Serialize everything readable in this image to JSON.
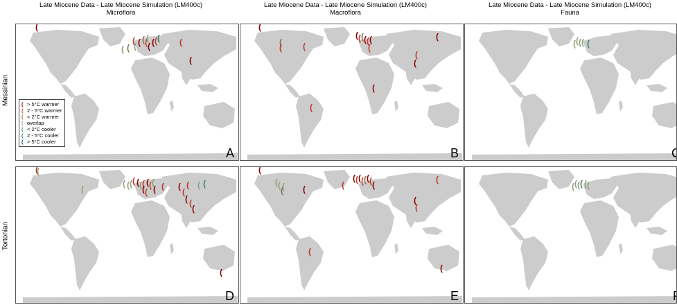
{
  "columns": [
    {
      "title": "Late Miocene Data - Late Miocene Simulation (LM400c)",
      "subtitle": "Microflora"
    },
    {
      "title": "Late Miocene Data - Late Miocene Simulation (LM400c)",
      "subtitle": "Macroflora"
    },
    {
      "title": "Late Miocene Data - Late Miocene Simulation (LM400c)",
      "subtitle": "Fauna"
    }
  ],
  "rows": [
    {
      "label": "Messinian"
    },
    {
      "label": "Tortonian"
    }
  ],
  "panels": [
    {
      "letter": "A"
    },
    {
      "letter": "B"
    },
    {
      "letter": "C"
    },
    {
      "letter": "D"
    },
    {
      "letter": "E"
    },
    {
      "letter": "F"
    }
  ],
  "legend": [
    {
      "label": "> 5°C warmer",
      "color": "#8b0000"
    },
    {
      "label": "2 - 5°C warmer",
      "color": "#c0392b"
    },
    {
      "label": "< 2°C warmer",
      "color": "#8b6b4a"
    },
    {
      "label": "overlap",
      "color": "#8fa07a"
    },
    {
      "label": "< 2°C cooler",
      "color": "#3e7d6b"
    },
    {
      "label": "2 - 5°C cooler",
      "color": "#2b6ca3"
    },
    {
      "label": "> 5°C cooler",
      "color": "#1c2f6b"
    }
  ],
  "colors": {
    "land": "#cccccc",
    "ocean": "#ffffff"
  }
}
